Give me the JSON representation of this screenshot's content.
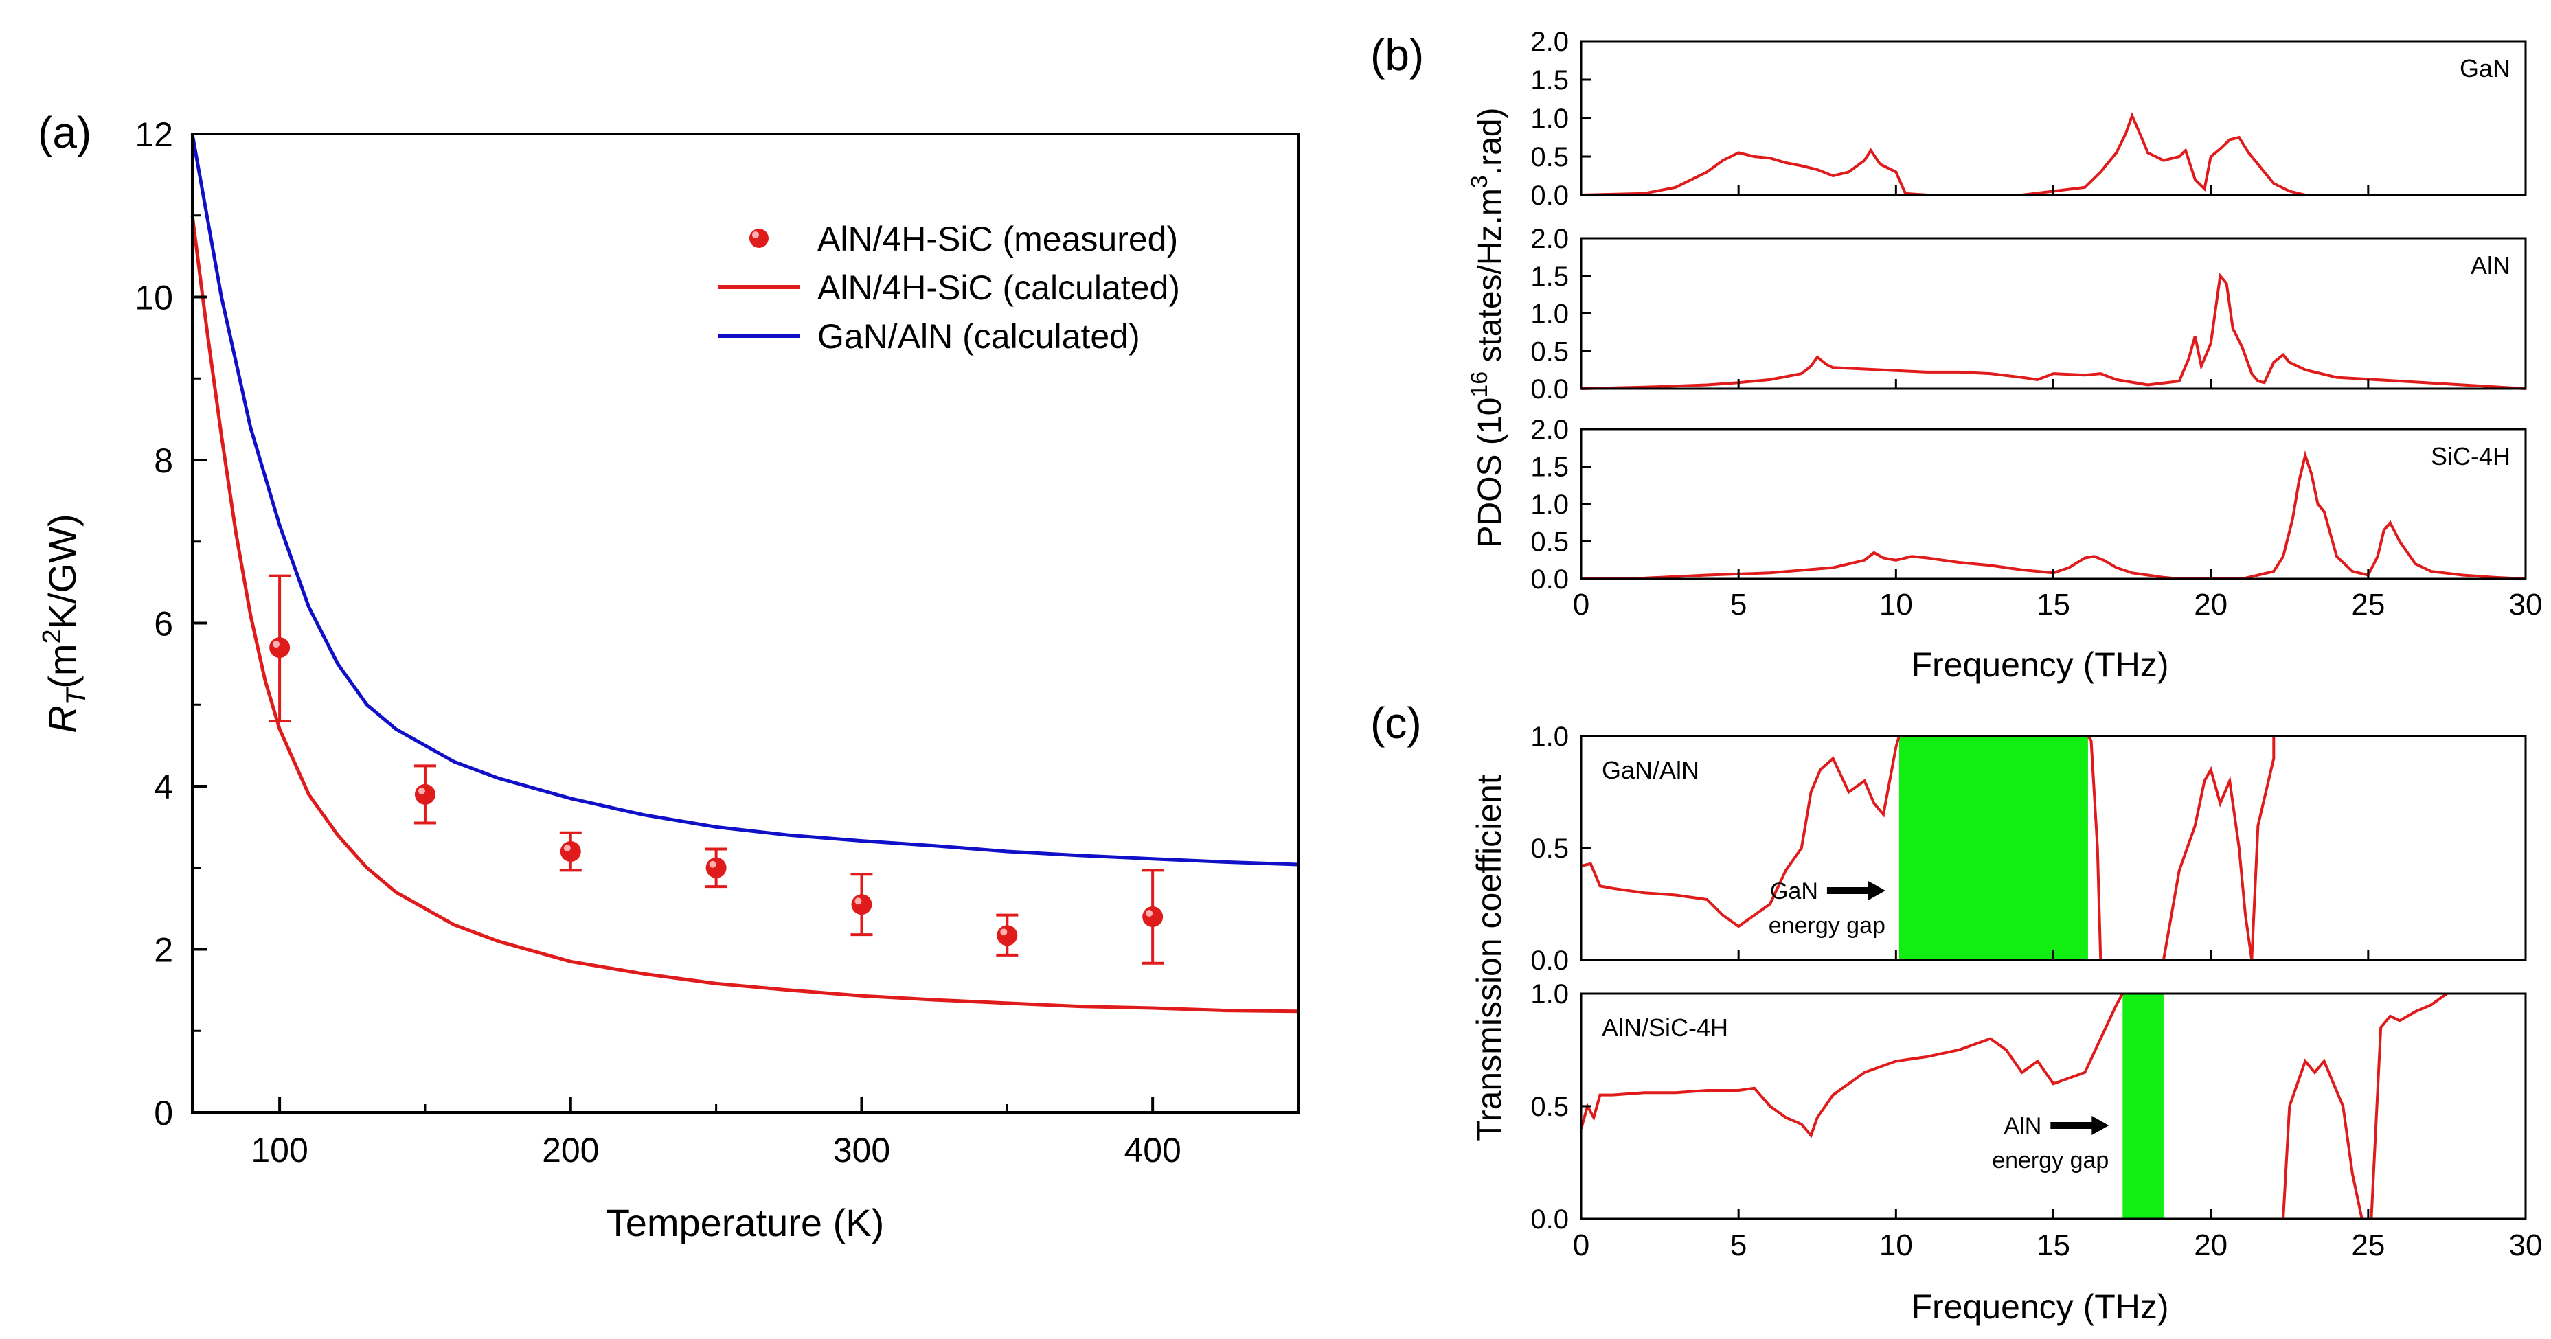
{
  "colors": {
    "red": "#e01b1b",
    "blue": "#1010c8",
    "green": "#11ee11",
    "axis": "#000000"
  },
  "chart_data": [
    {
      "panel": "(a)",
      "type": "line",
      "xlabel": "Temperature (K)",
      "ylabel_main": "R",
      "ylabel_sub": "T",
      "ylabel_unit_pre": "(m",
      "ylabel_unit_sup": "2",
      "ylabel_unit_post": "K/GW)",
      "xlim": [
        70,
        450
      ],
      "ylim": [
        0,
        12
      ],
      "xticks": [
        100,
        200,
        300,
        400
      ],
      "yticks": [
        0,
        2,
        4,
        6,
        8,
        10,
        12
      ],
      "legend_position": "top-right",
      "measured": {
        "name": "AlN/4H-SiC (measured)",
        "x": [
          100,
          150,
          200,
          250,
          300,
          350,
          400
        ],
        "y": [
          5.7,
          3.9,
          3.2,
          3.0,
          2.55,
          2.17,
          2.4
        ],
        "err_low": [
          4.8,
          3.55,
          2.97,
          2.77,
          2.18,
          1.93,
          1.83
        ],
        "err_high": [
          6.58,
          4.25,
          3.43,
          3.23,
          2.92,
          2.42,
          2.97
        ]
      },
      "series": [
        {
          "name": "AlN/4H-SiC (calculated)",
          "color": "red",
          "x": [
            70,
            75,
            80,
            85,
            90,
            95,
            100,
            110,
            120,
            130,
            140,
            150,
            160,
            175,
            200,
            225,
            250,
            275,
            300,
            325,
            350,
            375,
            400,
            425,
            450
          ],
          "y": [
            11.0,
            9.6,
            8.3,
            7.1,
            6.1,
            5.3,
            4.7,
            3.9,
            3.4,
            3.0,
            2.7,
            2.5,
            2.3,
            2.1,
            1.85,
            1.7,
            1.58,
            1.5,
            1.43,
            1.38,
            1.34,
            1.3,
            1.28,
            1.25,
            1.24
          ]
        },
        {
          "name": "GaN/AlN (calculated)",
          "color": "blue",
          "x": [
            70,
            75,
            80,
            85,
            90,
            95,
            100,
            110,
            120,
            130,
            140,
            150,
            160,
            175,
            200,
            225,
            250,
            275,
            300,
            325,
            350,
            375,
            400,
            425,
            450
          ],
          "y": [
            12.0,
            11.0,
            10.0,
            9.2,
            8.4,
            7.8,
            7.2,
            6.2,
            5.5,
            5.0,
            4.7,
            4.5,
            4.3,
            4.1,
            3.85,
            3.65,
            3.5,
            3.4,
            3.33,
            3.27,
            3.2,
            3.15,
            3.11,
            3.07,
            3.04
          ]
        }
      ]
    },
    {
      "panel": "(b)",
      "type": "line",
      "xlabel": "Frequency (THz)",
      "ylabel_pre": "PDOS  (10",
      "ylabel_sup1": "16",
      "ylabel_mid": " states/Hz.m",
      "ylabel_sup2": "3",
      "ylabel_post": ".rad)",
      "xlim": [
        0,
        30
      ],
      "xticks": [
        0,
        5,
        10,
        15,
        20,
        25,
        30
      ],
      "ylim": [
        0,
        2
      ],
      "yticks": [
        "0.0",
        "0.5",
        "1.0",
        "1.5",
        "2.0"
      ],
      "subplots": [
        {
          "label": "GaN",
          "x": [
            0,
            2,
            3,
            4,
            4.5,
            5,
            5.5,
            6,
            6.5,
            7,
            7.5,
            8,
            8.5,
            9,
            9.2,
            9.5,
            10,
            10.3,
            11,
            14,
            16,
            16.5,
            17,
            17.3,
            17.5,
            17.8,
            18,
            18.5,
            19,
            19.2,
            19.5,
            19.8,
            20,
            20.3,
            20.6,
            20.9,
            21.2,
            21.5,
            22,
            22.5,
            23,
            30
          ],
          "y": [
            0,
            0.02,
            0.1,
            0.3,
            0.45,
            0.55,
            0.5,
            0.48,
            0.42,
            0.38,
            0.33,
            0.25,
            0.3,
            0.45,
            0.58,
            0.4,
            0.3,
            0.02,
            0,
            0,
            0.1,
            0.3,
            0.55,
            0.8,
            1.03,
            0.75,
            0.55,
            0.45,
            0.5,
            0.58,
            0.2,
            0.08,
            0.5,
            0.6,
            0.72,
            0.75,
            0.55,
            0.4,
            0.15,
            0.05,
            0,
            0
          ]
        },
        {
          "label": "AlN",
          "x": [
            0,
            2,
            4,
            5,
            6,
            7,
            7.3,
            7.5,
            7.8,
            8,
            9,
            10,
            11,
            12,
            13,
            14,
            14.5,
            15,
            16,
            16.5,
            17,
            18,
            19,
            19.3,
            19.5,
            19.7,
            20,
            20.3,
            20.5,
            20.7,
            21,
            21.3,
            21.5,
            21.7,
            22,
            22.3,
            22.5,
            23,
            24,
            26,
            28,
            30
          ],
          "y": [
            0,
            0.02,
            0.05,
            0.08,
            0.12,
            0.2,
            0.3,
            0.42,
            0.32,
            0.28,
            0.26,
            0.24,
            0.22,
            0.22,
            0.2,
            0.15,
            0.12,
            0.2,
            0.18,
            0.2,
            0.12,
            0.05,
            0.1,
            0.4,
            0.7,
            0.3,
            0.6,
            1.5,
            1.4,
            0.8,
            0.55,
            0.2,
            0.1,
            0.08,
            0.35,
            0.45,
            0.35,
            0.25,
            0.15,
            0.1,
            0.05,
            0
          ]
        },
        {
          "label": "SiC-4H",
          "x": [
            0,
            2,
            4,
            6,
            8,
            9,
            9.3,
            9.6,
            10,
            10.5,
            11,
            11.5,
            12,
            13,
            14,
            15,
            15.5,
            16,
            16.3,
            16.6,
            17,
            17.5,
            18,
            18.5,
            19,
            21,
            22,
            22.3,
            22.6,
            22.8,
            23,
            23.2,
            23.4,
            23.6,
            23.8,
            24,
            24.5,
            25,
            25.3,
            25.5,
            25.7,
            26,
            26.5,
            27,
            28,
            29,
            30
          ],
          "y": [
            0,
            0.01,
            0.05,
            0.08,
            0.15,
            0.25,
            0.35,
            0.28,
            0.25,
            0.3,
            0.28,
            0.25,
            0.22,
            0.18,
            0.12,
            0.08,
            0.15,
            0.28,
            0.3,
            0.25,
            0.15,
            0.08,
            0.05,
            0.02,
            0,
            0,
            0.1,
            0.3,
            0.8,
            1.3,
            1.65,
            1.4,
            1.0,
            0.9,
            0.6,
            0.3,
            0.1,
            0.05,
            0.3,
            0.65,
            0.75,
            0.5,
            0.2,
            0.1,
            0.05,
            0.02,
            0
          ]
        }
      ]
    },
    {
      "panel": "(c)",
      "type": "line",
      "xlabel": "Frequency (THz)",
      "ylabel": "Transmission coefficient",
      "xlim": [
        0,
        30
      ],
      "xticks": [
        0,
        5,
        10,
        15,
        20,
        25,
        30
      ],
      "ylim": [
        0,
        1
      ],
      "yticks": [
        "0.0",
        "0.5",
        "1.0"
      ],
      "subplots": [
        {
          "label": "GaN/AlN",
          "gap": {
            "start": 10.1,
            "end": 16.1,
            "label_line1": "GaN",
            "label_line2": "energy gap"
          },
          "segments": [
            {
              "x": [
                0,
                0.3,
                0.6,
                1,
                2,
                3,
                4,
                4.5,
                5,
                5.5,
                6,
                6.5,
                7,
                7.3,
                7.6,
                8,
                8.5,
                9,
                9.3,
                9.6,
                10,
                10.1
              ],
              "y": [
                0.42,
                0.43,
                0.33,
                0.32,
                0.3,
                0.29,
                0.27,
                0.2,
                0.15,
                0.2,
                0.25,
                0.4,
                0.5,
                0.75,
                0.85,
                0.9,
                0.75,
                0.8,
                0.7,
                0.65,
                0.95,
                1.0
              ]
            },
            {
              "x": [
                16.1,
                16.2,
                16.4,
                16.5
              ],
              "y": [
                1.0,
                0.98,
                0.5,
                0.0
              ]
            },
            {
              "x": [
                18.5,
                19,
                19.5,
                19.8,
                20,
                20.3,
                20.6,
                20.9,
                21.1,
                21.3,
                21.5,
                22,
                22
              ],
              "y": [
                0.0,
                0.4,
                0.6,
                0.8,
                0.85,
                0.7,
                0.8,
                0.5,
                0.2,
                0.0,
                0.6,
                0.9,
                1.0
              ]
            }
          ]
        },
        {
          "label": "AlN/SiC-4H",
          "gap": {
            "start": 17.2,
            "end": 18.5,
            "label_line1": "AlN",
            "label_line2": "energy gap"
          },
          "segments": [
            {
              "x": [
                0,
                0.2,
                0.4,
                0.6,
                1,
                2,
                3,
                4,
                5,
                5.5,
                6,
                6.5,
                7,
                7.3,
                7.5,
                8,
                9,
                10,
                11,
                12,
                13,
                13.5,
                14,
                14.5,
                15,
                16,
                16.5,
                17,
                17.2
              ],
              "y": [
                0.4,
                0.5,
                0.45,
                0.55,
                0.55,
                0.56,
                0.56,
                0.57,
                0.57,
                0.58,
                0.5,
                0.45,
                0.42,
                0.37,
                0.45,
                0.55,
                0.65,
                0.7,
                0.72,
                0.75,
                0.8,
                0.75,
                0.65,
                0.7,
                0.6,
                0.65,
                0.8,
                0.95,
                1.0
              ]
            },
            {
              "x": [
                22.3,
                22.5,
                23,
                23.3,
                23.6,
                23.9,
                24.2,
                24.5,
                24.8
              ],
              "y": [
                0.0,
                0.5,
                0.7,
                0.65,
                0.7,
                0.6,
                0.5,
                0.2,
                0.0
              ]
            },
            {
              "x": [
                25.1,
                25.4,
                25.7,
                26,
                26.5,
                27,
                27.5
              ],
              "y": [
                0.0,
                0.85,
                0.9,
                0.88,
                0.92,
                0.95,
                1.0
              ]
            }
          ]
        }
      ]
    }
  ]
}
